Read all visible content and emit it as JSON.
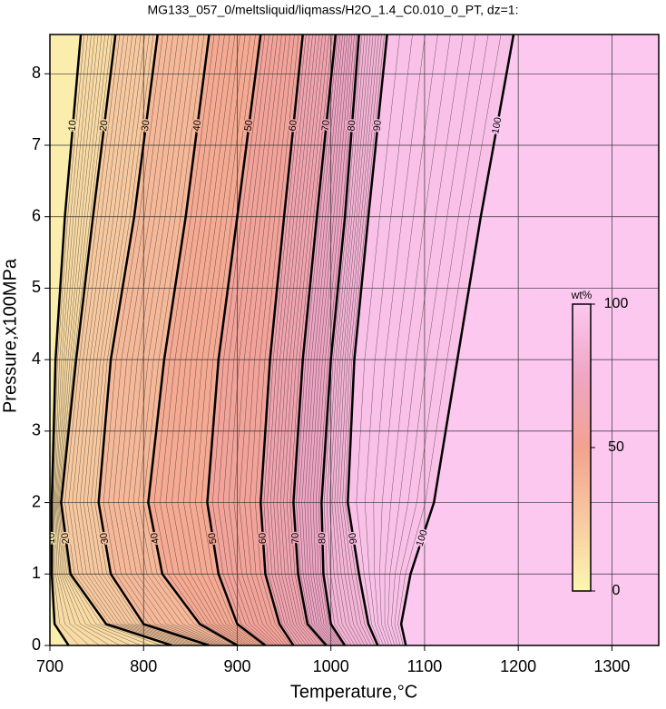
{
  "chart_data": {
    "type": "contour",
    "title": "MG133_057_0/meltsliquid/liqmass/H2O_1.4_C0.010_0_PT, dz=1:",
    "x_label": "Temperature,°C",
    "y_label": "Pressure,x100MPa",
    "xlim": [
      700,
      1350
    ],
    "ylim": [
      0,
      8.55
    ],
    "xticks": [
      700,
      800,
      900,
      1000,
      1100,
      1200,
      1300
    ],
    "yticks": [
      0,
      1,
      2,
      3,
      4,
      5,
      6,
      7,
      8
    ],
    "grid": true,
    "colormap": [
      "#fcf7b0",
      "#f7c9a0",
      "#f3a290",
      "#eea6c4",
      "#fcc8f0"
    ],
    "colorbar": {
      "label": "wt%",
      "lim": [
        0,
        100
      ],
      "ticks": [
        0,
        50,
        100
      ]
    },
    "contours": [
      {
        "level": 10,
        "x": [
          720,
          705,
          702,
          702,
          706,
          716,
          733
        ],
        "y": [
          0,
          0.3,
          1,
          2,
          4,
          6,
          8.55
        ]
      },
      {
        "level": 20,
        "x": [
          830,
          760,
          722,
          712,
          728,
          746,
          770
        ],
        "y": [
          0,
          0.3,
          1,
          2,
          4,
          6,
          8.55
        ]
      },
      {
        "level": 30,
        "x": [
          870,
          800,
          765,
          752,
          765,
          790,
          815
        ],
        "y": [
          0,
          0.3,
          1,
          2,
          4,
          6,
          8.55
        ]
      },
      {
        "level": 40,
        "x": [
          900,
          860,
          820,
          805,
          822,
          845,
          870
        ],
        "y": [
          0,
          0.3,
          1,
          2,
          4,
          6,
          8.55
        ]
      },
      {
        "level": 50,
        "x": [
          930,
          900,
          880,
          868,
          880,
          900,
          925
        ],
        "y": [
          0,
          0.3,
          1,
          2,
          4,
          6,
          8.55
        ]
      },
      {
        "level": 60,
        "x": [
          960,
          945,
          930,
          925,
          935,
          950,
          970
        ],
        "y": [
          0,
          0.3,
          1,
          2,
          4,
          6,
          8.55
        ]
      },
      {
        "level": 70,
        "x": [
          995,
          975,
          965,
          960,
          970,
          985,
          1005
        ],
        "y": [
          0,
          0.3,
          1,
          2,
          4,
          6,
          8.55
        ]
      },
      {
        "level": 80,
        "x": [
          1015,
          1000,
          992,
          990,
          1000,
          1015,
          1030
        ],
        "y": [
          0,
          0.3,
          1,
          2,
          4,
          6,
          8.55
        ]
      },
      {
        "level": 90,
        "x": [
          1050,
          1040,
          1030,
          1018,
          1025,
          1040,
          1060
        ],
        "y": [
          0,
          0.3,
          1,
          2,
          4,
          6,
          8.55
        ]
      },
      {
        "level": 100,
        "x": [
          1080,
          1075,
          1085,
          1110,
          1135,
          1160,
          1195
        ],
        "y": [
          0,
          0.3,
          1,
          2,
          4,
          6,
          8.55
        ]
      }
    ]
  }
}
